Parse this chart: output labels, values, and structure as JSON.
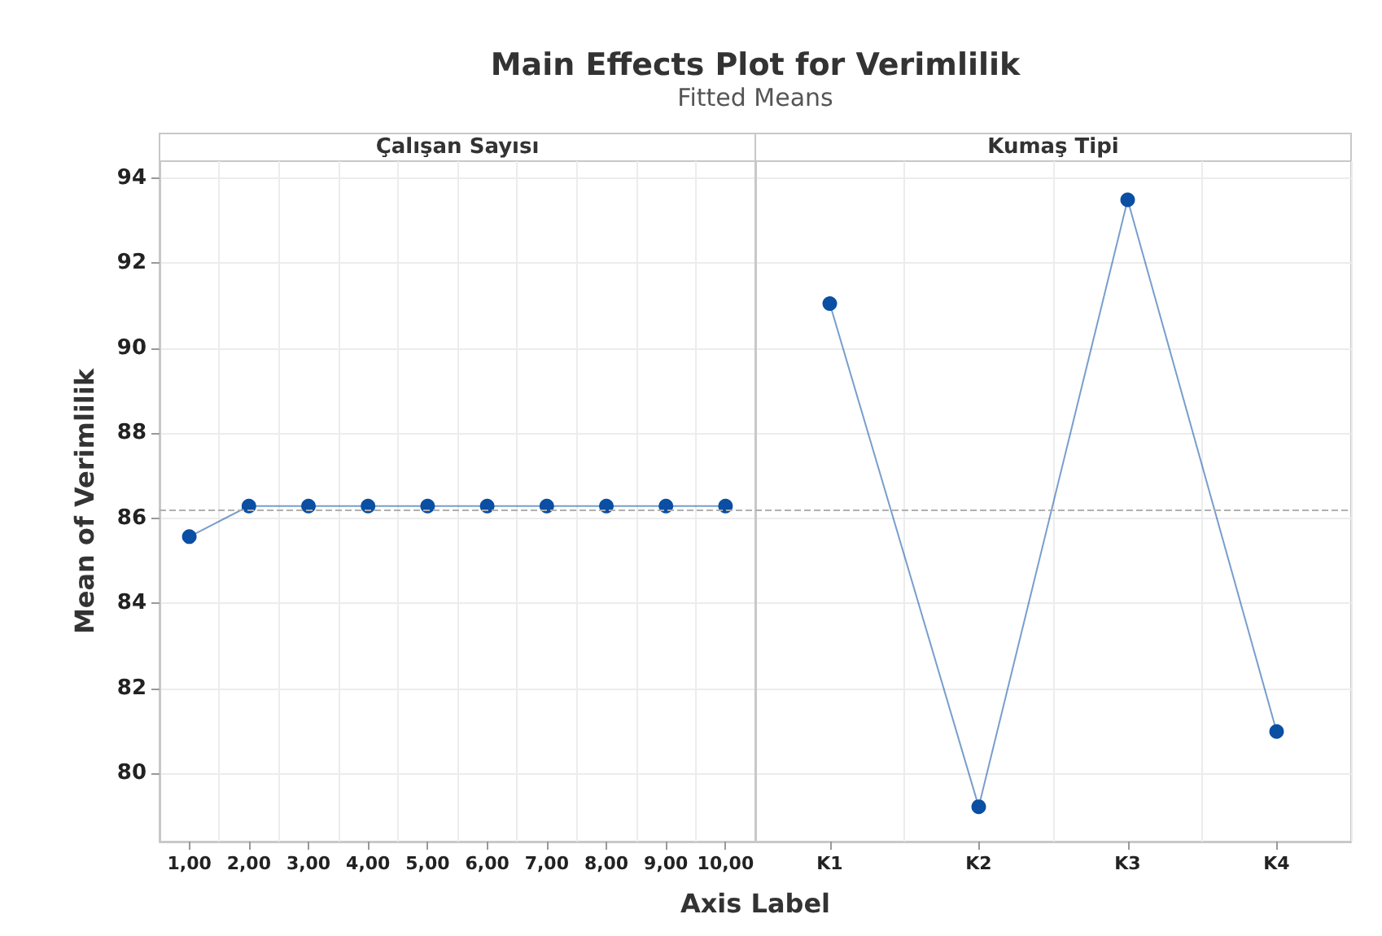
{
  "chart_data": [
    {
      "type": "line",
      "title": "Main Effects Plot for Verimlilik",
      "subtitle": "Fitted Means",
      "xlabel": "Axis Label",
      "ylabel": "Mean of Verimlilik",
      "annotations": [
        "Çalışan Sayısı"
      ],
      "categories": [
        "1,00",
        "2,00",
        "3,00",
        "4,00",
        "5,00",
        "6,00",
        "7,00",
        "8,00",
        "9,00",
        "10,00"
      ],
      "series": [
        {
          "color": "#0a4fa3",
          "values": [
            85.57,
            86.29,
            86.29,
            86.29,
            86.29,
            86.29,
            86.29,
            86.29,
            86.29,
            86.29
          ]
        }
      ],
      "ylim": [
        78.4,
        94.4
      ],
      "yticks": [
        80,
        82,
        84,
        86,
        88,
        90,
        92,
        94
      ],
      "grid": true,
      "marker": "circle",
      "line_style": "solid",
      "ref_lines": [
        {
          "axis": "y",
          "value": 86.21,
          "color": "#b0b0b0",
          "line_style": "dashed"
        }
      ]
    },
    {
      "type": "line",
      "annotations": [
        "Kumaş Tipi"
      ],
      "categories": [
        "K1",
        "K2",
        "K3",
        "K4"
      ],
      "series": [
        {
          "color": "#0a4fa3",
          "values": [
            91.05,
            79.22,
            93.49,
            80.99
          ]
        }
      ],
      "ylim": [
        78.4,
        94.4
      ],
      "yticks": [
        80,
        82,
        84,
        86,
        88,
        90,
        92,
        94
      ],
      "grid": true,
      "marker": "circle",
      "line_style": "solid",
      "tick_labels": "x",
      "ref_lines": [
        {
          "axis": "y",
          "value": 86.21,
          "color": "#b0b0b0",
          "line_style": "dashed"
        }
      ]
    }
  ]
}
